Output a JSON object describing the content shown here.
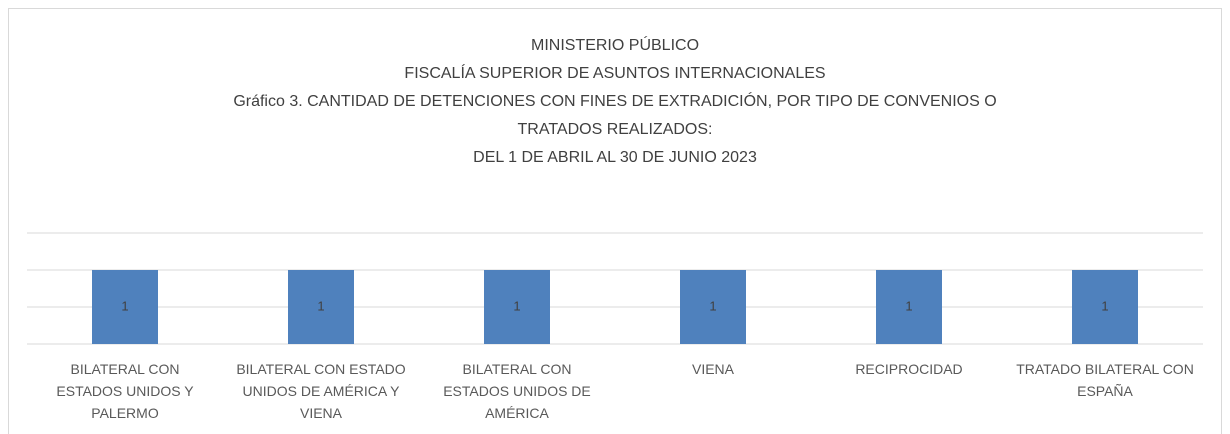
{
  "chart_data": {
    "type": "bar",
    "title": [
      "MINISTERIO PÚBLICO",
      "FISCALÍA SUPERIOR DE ASUNTOS INTERNACIONALES",
      "Gráfico 3.  CANTIDAD DE DETENCIONES CON FINES DE EXTRADICIÓN, POR TIPO DE CONVENIOS O",
      "TRATADOS REALIZADOS:",
      "DEL 1 DE ABRIL AL 30 DE JUNIO  2023"
    ],
    "categories": [
      "BILATERAL CON ESTADOS UNIDOS Y PALERMO",
      "BILATERAL CON ESTADO UNIDOS DE AMÉRICA Y VIENA",
      "BILATERAL CON ESTADOS UNIDOS DE AMÉRICA",
      "VIENA",
      "RECIPROCIDAD",
      "TRATADO BILATERAL CON ESPAÑA"
    ],
    "values": [
      1,
      1,
      1,
      1,
      1,
      1
    ],
    "color": "#4f81bd",
    "ylim": [
      0,
      1.5
    ],
    "yticks": [
      0,
      0.5,
      1,
      1.5
    ],
    "grid": true
  }
}
